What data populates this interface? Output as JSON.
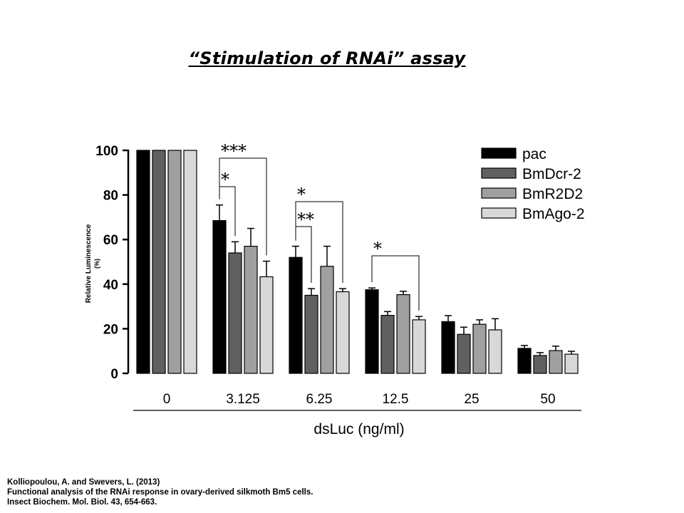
{
  "title": "“Stimulation of RNAi” assay",
  "citation": [
    "Kolliopoulou, A. and Swevers, L. (2013)",
    "Functional analysis of the RNAi response in ovary-derived  silkmoth Bm5 cells.",
    "Insect Biochem. Mol. Biol. 43, 654-663."
  ],
  "chart_data": {
    "type": "bar",
    "xlabel": "dsLuc (ng/ml)",
    "ylabel": "Relative Luminescence",
    "ylabel_unit": "(%)",
    "ylim": [
      0,
      100
    ],
    "yticks": [
      0,
      20,
      40,
      60,
      80,
      100
    ],
    "categories": [
      "0",
      "3.125",
      "6.25",
      "12.5",
      "25",
      "50"
    ],
    "legend_position": "top-right",
    "grid": false,
    "series": [
      {
        "name": "pac",
        "color": "#000000",
        "values": [
          100,
          68.5,
          52,
          37.5,
          23.2,
          11.2
        ],
        "errors": [
          0,
          7,
          5,
          0.8,
          2.7,
          1.3
        ]
      },
      {
        "name": "BmDcr-2",
        "color": "#606060",
        "values": [
          100,
          54,
          35,
          26,
          17.5,
          8
        ],
        "errors": [
          0,
          5,
          3,
          1.7,
          3.2,
          1.3
        ]
      },
      {
        "name": "BmR2D2",
        "color": "#a0a0a0",
        "values": [
          100,
          57,
          48,
          35.3,
          22,
          10.2
        ],
        "errors": [
          0,
          8,
          9,
          1.5,
          2,
          2
        ]
      },
      {
        "name": "BmAgo-2",
        "color": "#d8d8d8",
        "values": [
          100,
          43.3,
          36.6,
          24,
          19.5,
          8.6
        ],
        "errors": [
          0,
          7,
          1.4,
          1.5,
          5,
          1.3
        ]
      }
    ],
    "annotations": [
      {
        "label": "***",
        "category": "3.125",
        "from_series": "pac",
        "to_series": "BmAgo-2"
      },
      {
        "label": "*",
        "category": "3.125",
        "from_series": "pac",
        "to_series": "BmDcr-2"
      },
      {
        "label": "*",
        "category": "6.25",
        "from_series": "pac",
        "to_series": "BmAgo-2"
      },
      {
        "label": "**",
        "category": "6.25",
        "from_series": "pac",
        "to_series": "BmDcr-2"
      },
      {
        "label": "*",
        "category": "12.5",
        "from_series": "pac",
        "to_series": "BmAgo-2"
      }
    ]
  }
}
